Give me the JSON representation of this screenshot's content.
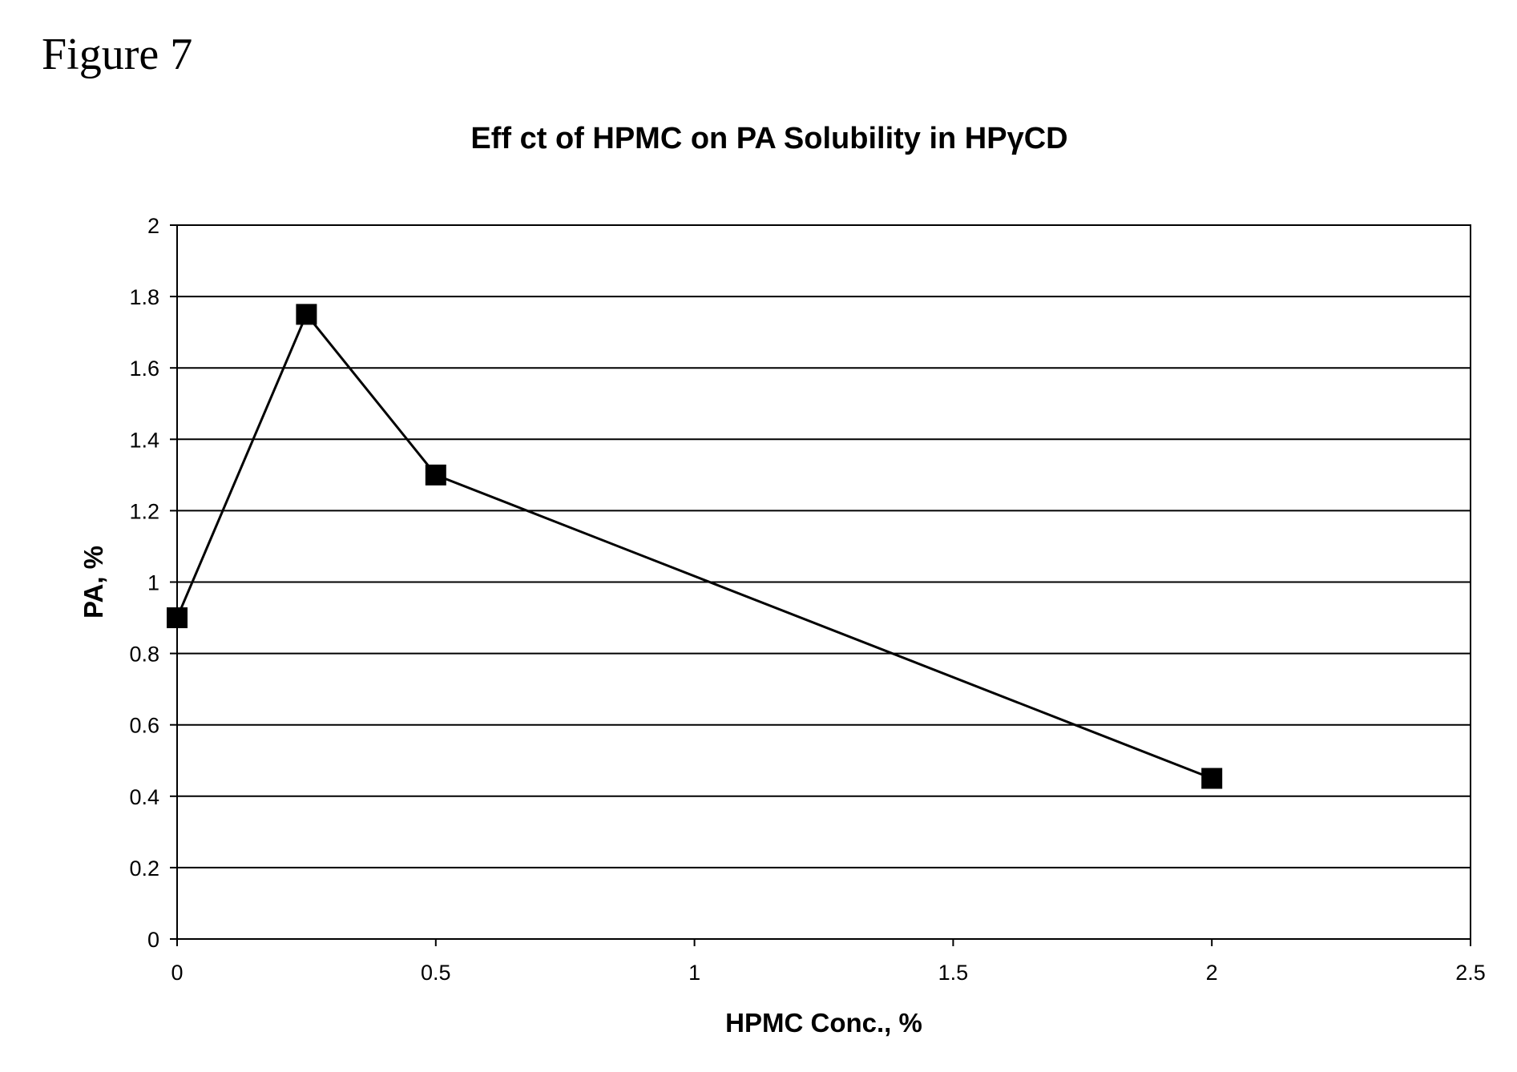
{
  "figure_label": "Figure 7",
  "chart_data": {
    "type": "line",
    "title": "Eff  ct of HPMC on PA Solubility in HPγCD",
    "xlabel": "HPMC Conc., %",
    "ylabel": "PA, %",
    "xlim": [
      0,
      2.5
    ],
    "ylim": [
      0,
      2
    ],
    "x_ticks": [
      0,
      0.5,
      1,
      1.5,
      2,
      2.5
    ],
    "x_tick_labels": [
      "0",
      "0.5",
      "1",
      "1.5",
      "2",
      "2.5"
    ],
    "y_ticks": [
      0,
      0.2,
      0.4,
      0.6,
      0.8,
      1,
      1.2,
      1.4,
      1.6,
      1.8,
      2
    ],
    "y_tick_labels": [
      "0",
      "0.2",
      "0.4",
      "0.6",
      "0.8",
      "1",
      "1.2",
      "1.4",
      "1.6",
      "1.8",
      "2"
    ],
    "grid": "horizontal",
    "legend": "none",
    "marker": "square",
    "line_color": "#000000",
    "marker_color": "#000000",
    "series": [
      {
        "x": [
          0,
          0.25,
          0.5,
          2
        ],
        "y": [
          0.9,
          1.75,
          1.3,
          0.45
        ]
      }
    ]
  }
}
